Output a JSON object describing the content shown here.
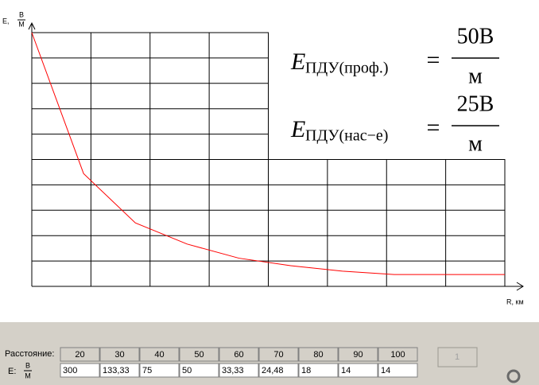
{
  "chart_data": {
    "type": "line",
    "y_label": {
      "symbol": "E,",
      "numerator": "В",
      "denominator": "М"
    },
    "x_label": "R, км",
    "x": [
      20,
      30,
      40,
      50,
      60,
      70,
      80,
      90,
      100
    ],
    "values": [
      300,
      133.33,
      75,
      50,
      33.33,
      24.48,
      18,
      14,
      14
    ],
    "value_labels": [
      "300",
      "133,33",
      "75",
      "50",
      "33,33",
      "24,48",
      "18",
      "14",
      "14"
    ],
    "color": "#ff0000",
    "xlim": [
      20,
      100
    ],
    "ylim": [
      0,
      300
    ],
    "grid": true
  },
  "formulas": [
    {
      "symbol": "E",
      "subscript": "ПДУ(проф.)",
      "equals": "=",
      "numerator": "50В",
      "denominator": "м"
    },
    {
      "symbol": "E",
      "subscript": "ПДУ(нас−е)",
      "equals": "=",
      "numerator": "25В",
      "denominator": "м"
    }
  ],
  "table": {
    "distance_label": "Расстояние:",
    "e_label": {
      "symbol": "E:",
      "numerator": "В",
      "denominator": "М"
    }
  },
  "button": {
    "label": "1"
  }
}
